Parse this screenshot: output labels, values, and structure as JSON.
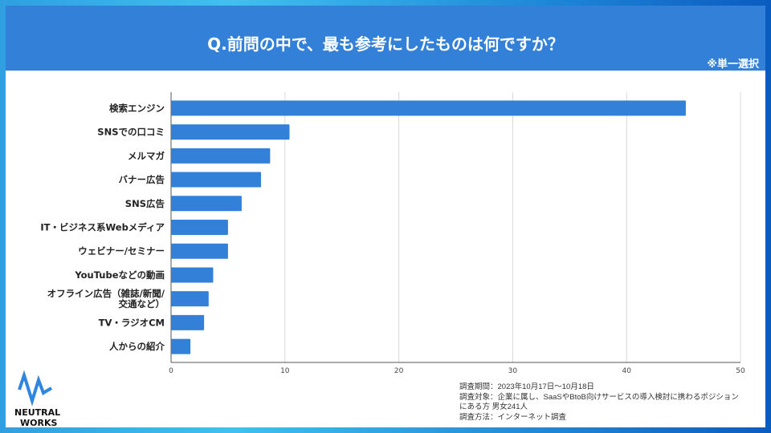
{
  "header": {
    "title": "Q.前問の中で、最も参考にしたものは何ですか？",
    "note": "※単一選択"
  },
  "chart_data": {
    "type": "bar",
    "orientation": "horizontal",
    "categories": [
      "検索エンジン",
      "SNSでの口コミ",
      "メルマガ",
      "バナー広告",
      "SNS広告",
      "IT・ビジネス系Webメディア",
      "ウェビナー/セミナー",
      "YouTubeなどの動画",
      "オフライン広告（雑誌/新聞/\n交通など）",
      "TV・ラジオCM",
      "人からの紹介"
    ],
    "values": [
      45.2,
      10.4,
      8.7,
      7.9,
      6.2,
      5.0,
      5.0,
      3.7,
      3.3,
      2.9,
      1.7
    ],
    "xlim": [
      0,
      50
    ],
    "xticks": [
      0,
      10,
      20,
      30,
      40,
      50
    ],
    "grid": true,
    "bar_color": "#3380d8"
  },
  "survey": {
    "lines": [
      "調査期間：2023年10月17日～10月18日",
      "調査対象：企業に属し、SaaSやBtoB向けサービスの導入検討に携わるポジション",
      "にある方  男女241人",
      "調査方法：インターネット調査"
    ]
  },
  "logo": {
    "text_line1": "NEUTRAL",
    "text_line2": "WORKS",
    "color": "#2f86e0"
  }
}
